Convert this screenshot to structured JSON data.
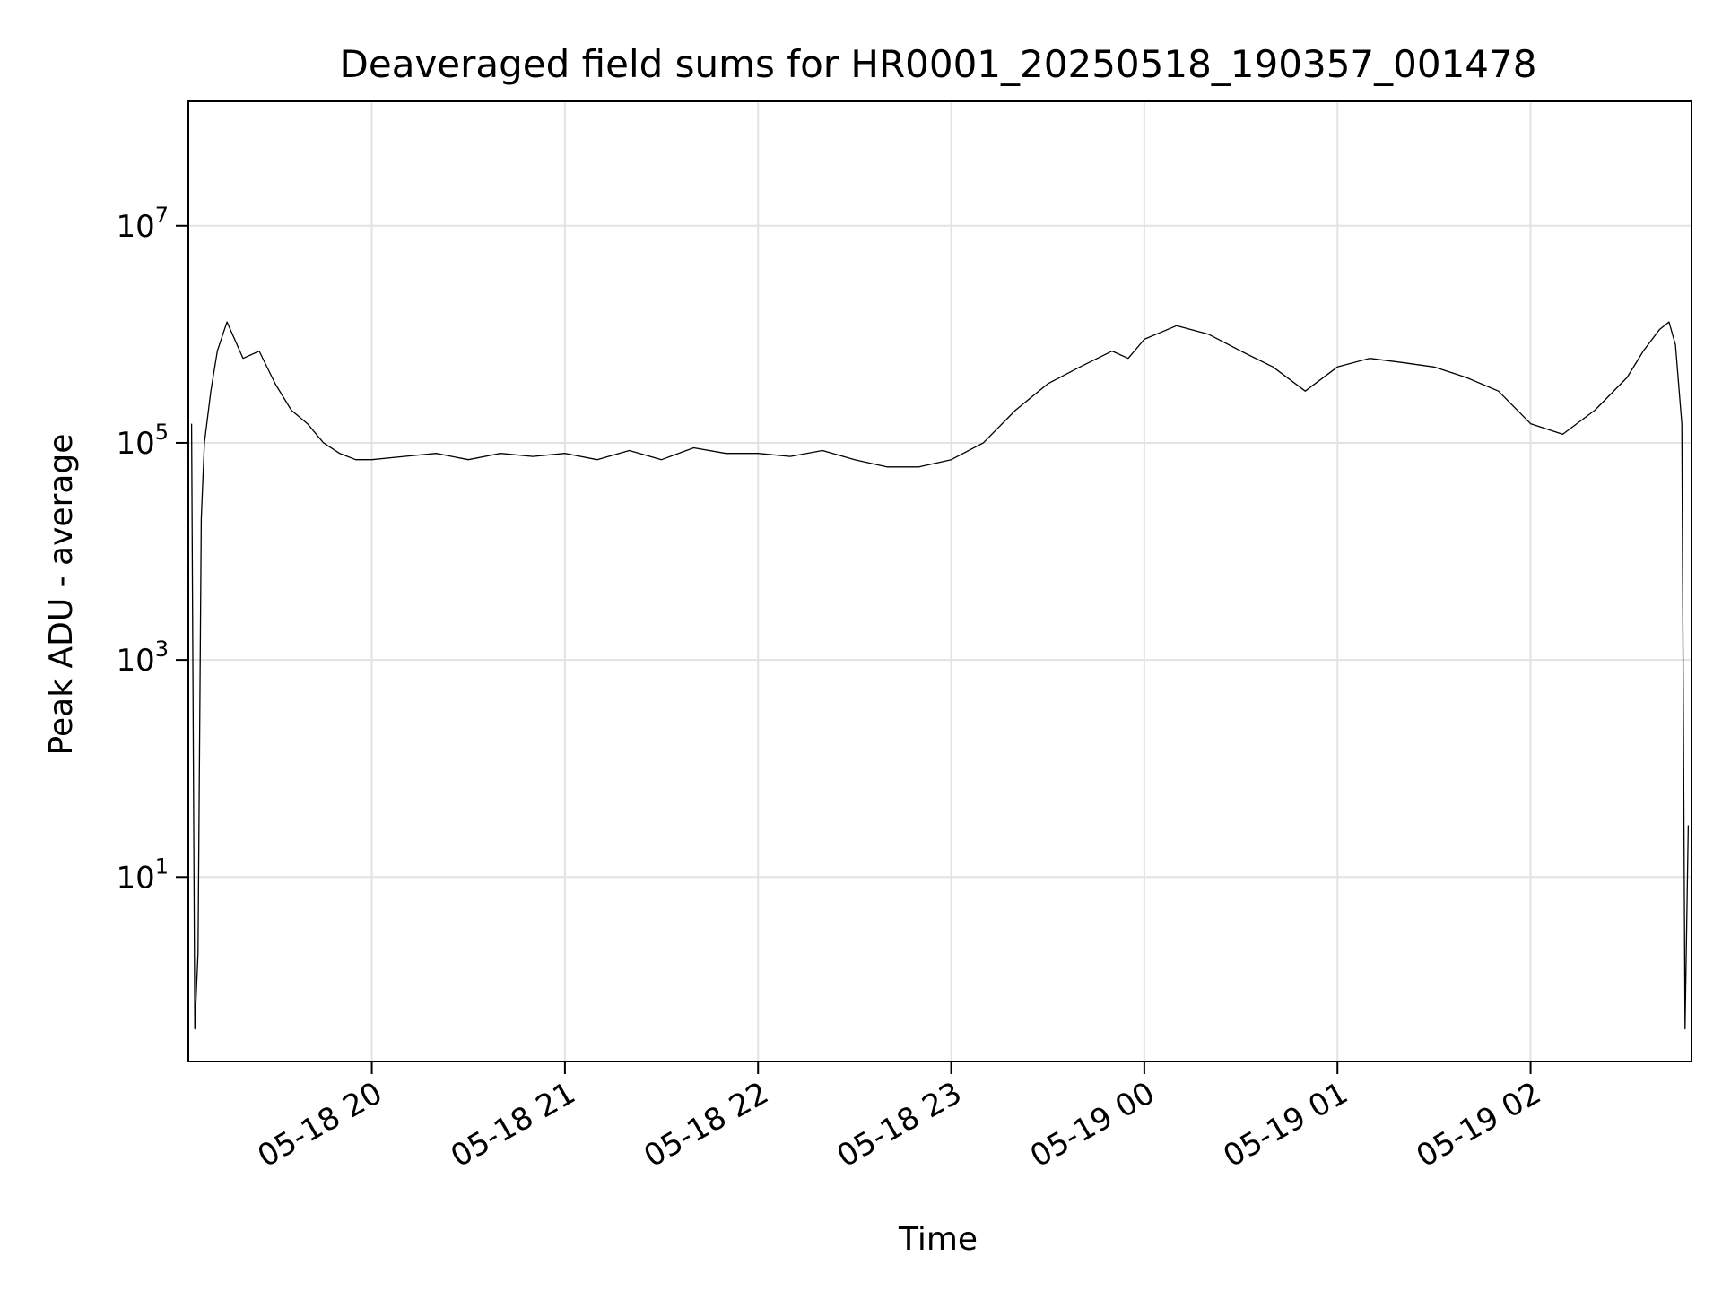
{
  "chart_data": {
    "type": "line",
    "title": "Deaveraged field sums for HR0001_20250518_190357_001478",
    "xlabel": "Time",
    "ylabel": "Peak ADU - average",
    "yscale": "log",
    "grid": true,
    "legend": "none",
    "line_color": "#000000",
    "x_range": [
      "2025-05-18 19:03",
      "2025-05-19 02:50"
    ],
    "ylim": [
      0.2,
      140000000
    ],
    "x_ticks": [
      {
        "value": "2025-05-18 20:00",
        "label": "05-18 20"
      },
      {
        "value": "2025-05-18 21:00",
        "label": "05-18 21"
      },
      {
        "value": "2025-05-18 22:00",
        "label": "05-18 22"
      },
      {
        "value": "2025-05-18 23:00",
        "label": "05-18 23"
      },
      {
        "value": "2025-05-19 00:00",
        "label": "05-19 00"
      },
      {
        "value": "2025-05-19 01:00",
        "label": "05-19 01"
      },
      {
        "value": "2025-05-19 02:00",
        "label": "05-19 02"
      }
    ],
    "y_ticks": [
      {
        "value": 10,
        "base": "10",
        "exp": "1"
      },
      {
        "value": 1000,
        "base": "10",
        "exp": "3"
      },
      {
        "value": 100000,
        "base": "10",
        "exp": "5"
      },
      {
        "value": 10000000,
        "base": "10",
        "exp": "7"
      }
    ],
    "series": [
      {
        "x": [
          "2025-05-18 19:04",
          "2025-05-18 19:05",
          "2025-05-18 19:06",
          "2025-05-18 19:07",
          "2025-05-18 19:08",
          "2025-05-18 19:10",
          "2025-05-18 19:12",
          "2025-05-18 19:15",
          "2025-05-18 19:20",
          "2025-05-18 19:25",
          "2025-05-18 19:30",
          "2025-05-18 19:35",
          "2025-05-18 19:40",
          "2025-05-18 19:45",
          "2025-05-18 19:50",
          "2025-05-18 19:55",
          "2025-05-18 20:00",
          "2025-05-18 20:10",
          "2025-05-18 20:20",
          "2025-05-18 20:30",
          "2025-05-18 20:40",
          "2025-05-18 20:50",
          "2025-05-18 21:00",
          "2025-05-18 21:10",
          "2025-05-18 21:20",
          "2025-05-18 21:30",
          "2025-05-18 21:40",
          "2025-05-18 21:50",
          "2025-05-18 22:00",
          "2025-05-18 22:10",
          "2025-05-18 22:20",
          "2025-05-18 22:30",
          "2025-05-18 22:40",
          "2025-05-18 22:50",
          "2025-05-18 23:00",
          "2025-05-18 23:10",
          "2025-05-18 23:20",
          "2025-05-18 23:30",
          "2025-05-18 23:40",
          "2025-05-18 23:50",
          "2025-05-18 23:55",
          "2025-05-19 00:00",
          "2025-05-19 00:10",
          "2025-05-19 00:20",
          "2025-05-19 00:30",
          "2025-05-19 00:40",
          "2025-05-19 00:50",
          "2025-05-19 01:00",
          "2025-05-19 01:10",
          "2025-05-19 01:20",
          "2025-05-19 01:30",
          "2025-05-19 01:40",
          "2025-05-19 01:50",
          "2025-05-19 02:00",
          "2025-05-19 02:10",
          "2025-05-19 02:20",
          "2025-05-19 02:30",
          "2025-05-19 02:35",
          "2025-05-19 02:40",
          "2025-05-19 02:43",
          "2025-05-19 02:45",
          "2025-05-19 02:47",
          "2025-05-19 02:48",
          "2025-05-19 02:49"
        ],
        "y": [
          150000,
          0.4,
          2,
          20000,
          100000,
          300000,
          700000,
          1300000,
          600000,
          700000,
          350000,
          200000,
          150000,
          100000,
          80000,
          70000,
          70000,
          75000,
          80000,
          70000,
          80000,
          75000,
          80000,
          70000,
          85000,
          70000,
          90000,
          80000,
          80000,
          75000,
          85000,
          70000,
          60000,
          60000,
          70000,
          100000,
          200000,
          350000,
          500000,
          700000,
          600000,
          900000,
          1200000,
          1000000,
          700000,
          500000,
          300000,
          500000,
          600000,
          550000,
          500000,
          400000,
          300000,
          150000,
          120000,
          200000,
          400000,
          700000,
          1100000,
          1300000,
          800000,
          150000,
          0.4,
          30
        ]
      }
    ]
  }
}
